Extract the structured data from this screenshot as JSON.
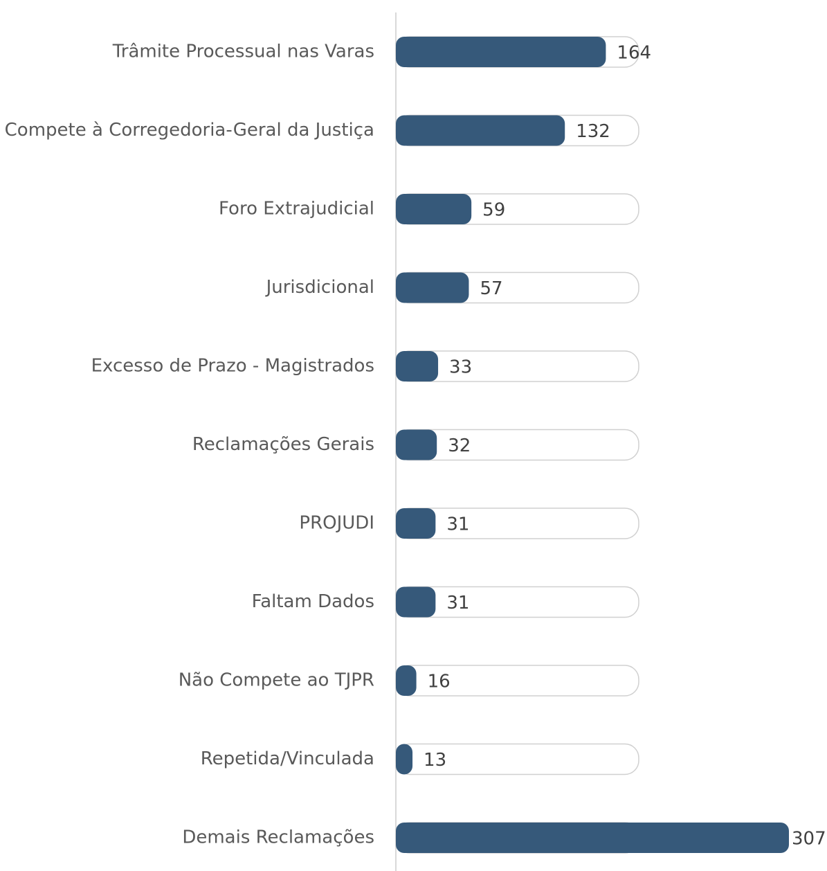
{
  "chart_data": {
    "type": "bar",
    "orientation": "horizontal",
    "categories": [
      "Trâmite Processual nas Varas",
      "Compete à Corregedoria-Geral da Justiça",
      "Foro Extrajudicial",
      "Jurisdicional",
      "Excesso de Prazo - Magistrados",
      "Reclamações Gerais",
      "PROJUDI",
      "Faltam Dados",
      "Não Compete ao TJPR",
      "Repetida/Vinculada",
      "Demais Reclamações"
    ],
    "values": [
      164,
      132,
      59,
      57,
      33,
      32,
      31,
      31,
      16,
      13,
      307
    ],
    "color": "#36597a"
  }
}
